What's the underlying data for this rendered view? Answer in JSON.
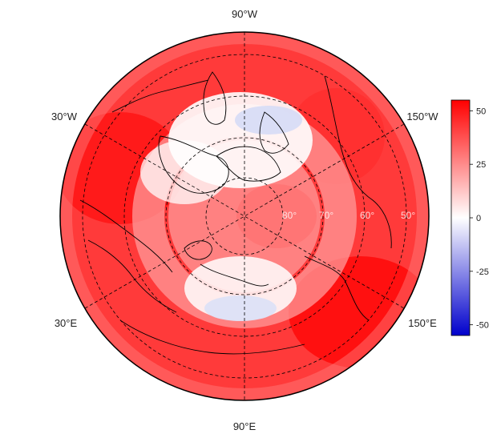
{
  "map": {
    "projection": "north-polar-stereographic",
    "longitude_labels": {
      "top": "90°W",
      "upper_left": "30°W",
      "upper_right": "150°W",
      "lower_left": "30°E",
      "lower_right": "150°E",
      "bottom": "90°E"
    },
    "latitude_labels": [
      "80°",
      "70°",
      "60°",
      "50°"
    ],
    "colors": {
      "high": "#ff0000",
      "mid": "#ffffff",
      "low": "#0000ff",
      "coastline": "#000000",
      "graticule": "#000000"
    }
  },
  "colorbar": {
    "min": -55,
    "max": 55,
    "ticks": [
      "50",
      "25",
      "0",
      "-25",
      "-50"
    ],
    "tick_values": [
      50,
      25,
      0,
      -25,
      -50
    ]
  }
}
